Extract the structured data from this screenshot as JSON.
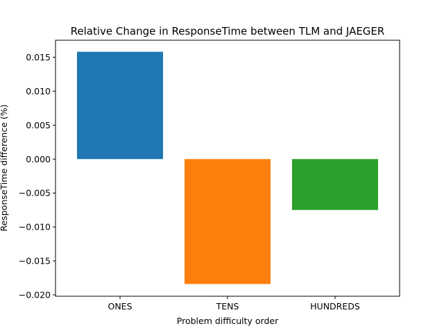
{
  "chart_data": {
    "type": "bar",
    "title": "Relative Change in ResponseTime between TLM and JAEGER",
    "xlabel": "Problem difficulty order",
    "ylabel": "ResponseTime difference (%)",
    "categories": [
      "ONES",
      "TENS",
      "HUNDREDS"
    ],
    "values": [
      0.0158,
      -0.0184,
      -0.0075
    ],
    "colors": [
      "#1f77b4",
      "#ff7f0e",
      "#2ca02c"
    ],
    "ylim": [
      -0.0202,
      0.0175
    ],
    "yticks": [
      -0.02,
      -0.015,
      -0.01,
      -0.005,
      0.0,
      0.005,
      0.01,
      0.015
    ],
    "ytick_labels": [
      "−0.020",
      "−0.015",
      "−0.010",
      "−0.005",
      "0.000",
      "0.005",
      "0.010",
      "0.015"
    ],
    "grid": false,
    "legend": "none"
  }
}
